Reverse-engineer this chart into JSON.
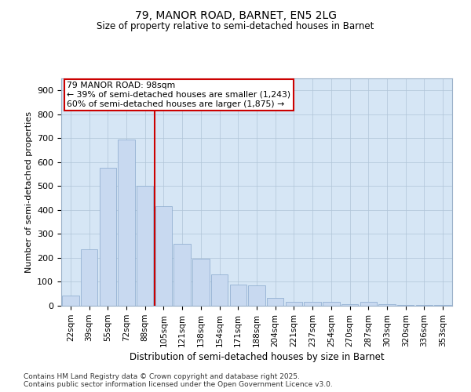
{
  "title_line1": "79, MANOR ROAD, BARNET, EN5 2LG",
  "title_line2": "Size of property relative to semi-detached houses in Barnet",
  "xlabel": "Distribution of semi-detached houses by size in Barnet",
  "ylabel": "Number of semi-detached properties",
  "categories": [
    "22sqm",
    "39sqm",
    "55sqm",
    "72sqm",
    "88sqm",
    "105sqm",
    "121sqm",
    "138sqm",
    "154sqm",
    "171sqm",
    "188sqm",
    "204sqm",
    "221sqm",
    "237sqm",
    "254sqm",
    "270sqm",
    "287sqm",
    "303sqm",
    "320sqm",
    "336sqm",
    "353sqm"
  ],
  "values": [
    42,
    235,
    575,
    695,
    500,
    415,
    260,
    195,
    130,
    90,
    85,
    33,
    18,
    16,
    18,
    5,
    16,
    5,
    4,
    2,
    2
  ],
  "bar_color": "#c8d9f0",
  "bar_edge_color": "#88a8cc",
  "vline_x_index": 4,
  "vline_color": "#cc0000",
  "annotation_line1": "79 MANOR ROAD: 98sqm",
  "annotation_line2": "← 39% of semi-detached houses are smaller (1,243)",
  "annotation_line3": "60% of semi-detached houses are larger (1,875) →",
  "annotation_box_facecolor": "#ffffff",
  "annotation_box_edgecolor": "#cc0000",
  "ylim": [
    0,
    950
  ],
  "yticks": [
    0,
    100,
    200,
    300,
    400,
    500,
    600,
    700,
    800,
    900
  ],
  "bg_color": "#d6e6f5",
  "title1_fontsize": 10,
  "title2_fontsize": 9,
  "footer_line1": "Contains HM Land Registry data © Crown copyright and database right 2025.",
  "footer_line2": "Contains public sector information licensed under the Open Government Licence v3.0."
}
